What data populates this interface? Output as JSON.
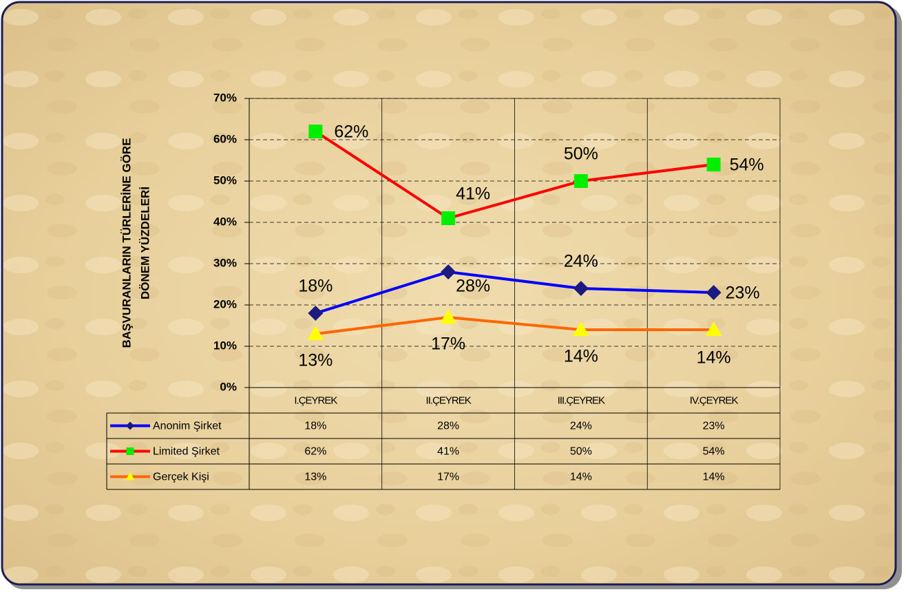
{
  "chart_data": {
    "type": "line",
    "ylabel": [
      "BAŞVURANLARIN TÜRLERİNE GÖRE",
      "DÖNEM YÜZDELERİ"
    ],
    "categories": [
      "I.ÇEYREK",
      "II.ÇEYREK",
      "III.ÇEYREK",
      "IV.ÇEYREK"
    ],
    "series": [
      {
        "name": "Anonim Şirket",
        "color": "#0000ff",
        "marker": "diamond",
        "marker_color": "#1a1a80",
        "values": [
          18,
          28,
          24,
          23
        ],
        "value_labels": [
          "18%",
          "28%",
          "24%",
          "23%"
        ]
      },
      {
        "name": "Limited Şirket",
        "color": "#ff0000",
        "marker": "square",
        "marker_color": "#00ee00",
        "values": [
          62,
          41,
          50,
          54
        ],
        "value_labels": [
          "62%",
          "41%",
          "50%",
          "54%"
        ]
      },
      {
        "name": "Gerçek Kişi",
        "color": "#ff6600",
        "marker": "triangle",
        "marker_color": "#ffff00",
        "values": [
          13,
          17,
          14,
          14
        ],
        "value_labels": [
          "13%",
          "17%",
          "14%",
          "14%"
        ]
      }
    ],
    "ylim": [
      0,
      70
    ],
    "yticks": [
      {
        "value": 0,
        "label": "0%"
      },
      {
        "value": 10,
        "label": "10%"
      },
      {
        "value": 20,
        "label": "20%"
      },
      {
        "value": 30,
        "label": "30%"
      },
      {
        "value": 40,
        "label": "40%"
      },
      {
        "value": 50,
        "label": "50%"
      },
      {
        "value": 60,
        "label": "60%"
      },
      {
        "value": 70,
        "label": "70%"
      }
    ],
    "grid": true,
    "data_table": true
  }
}
